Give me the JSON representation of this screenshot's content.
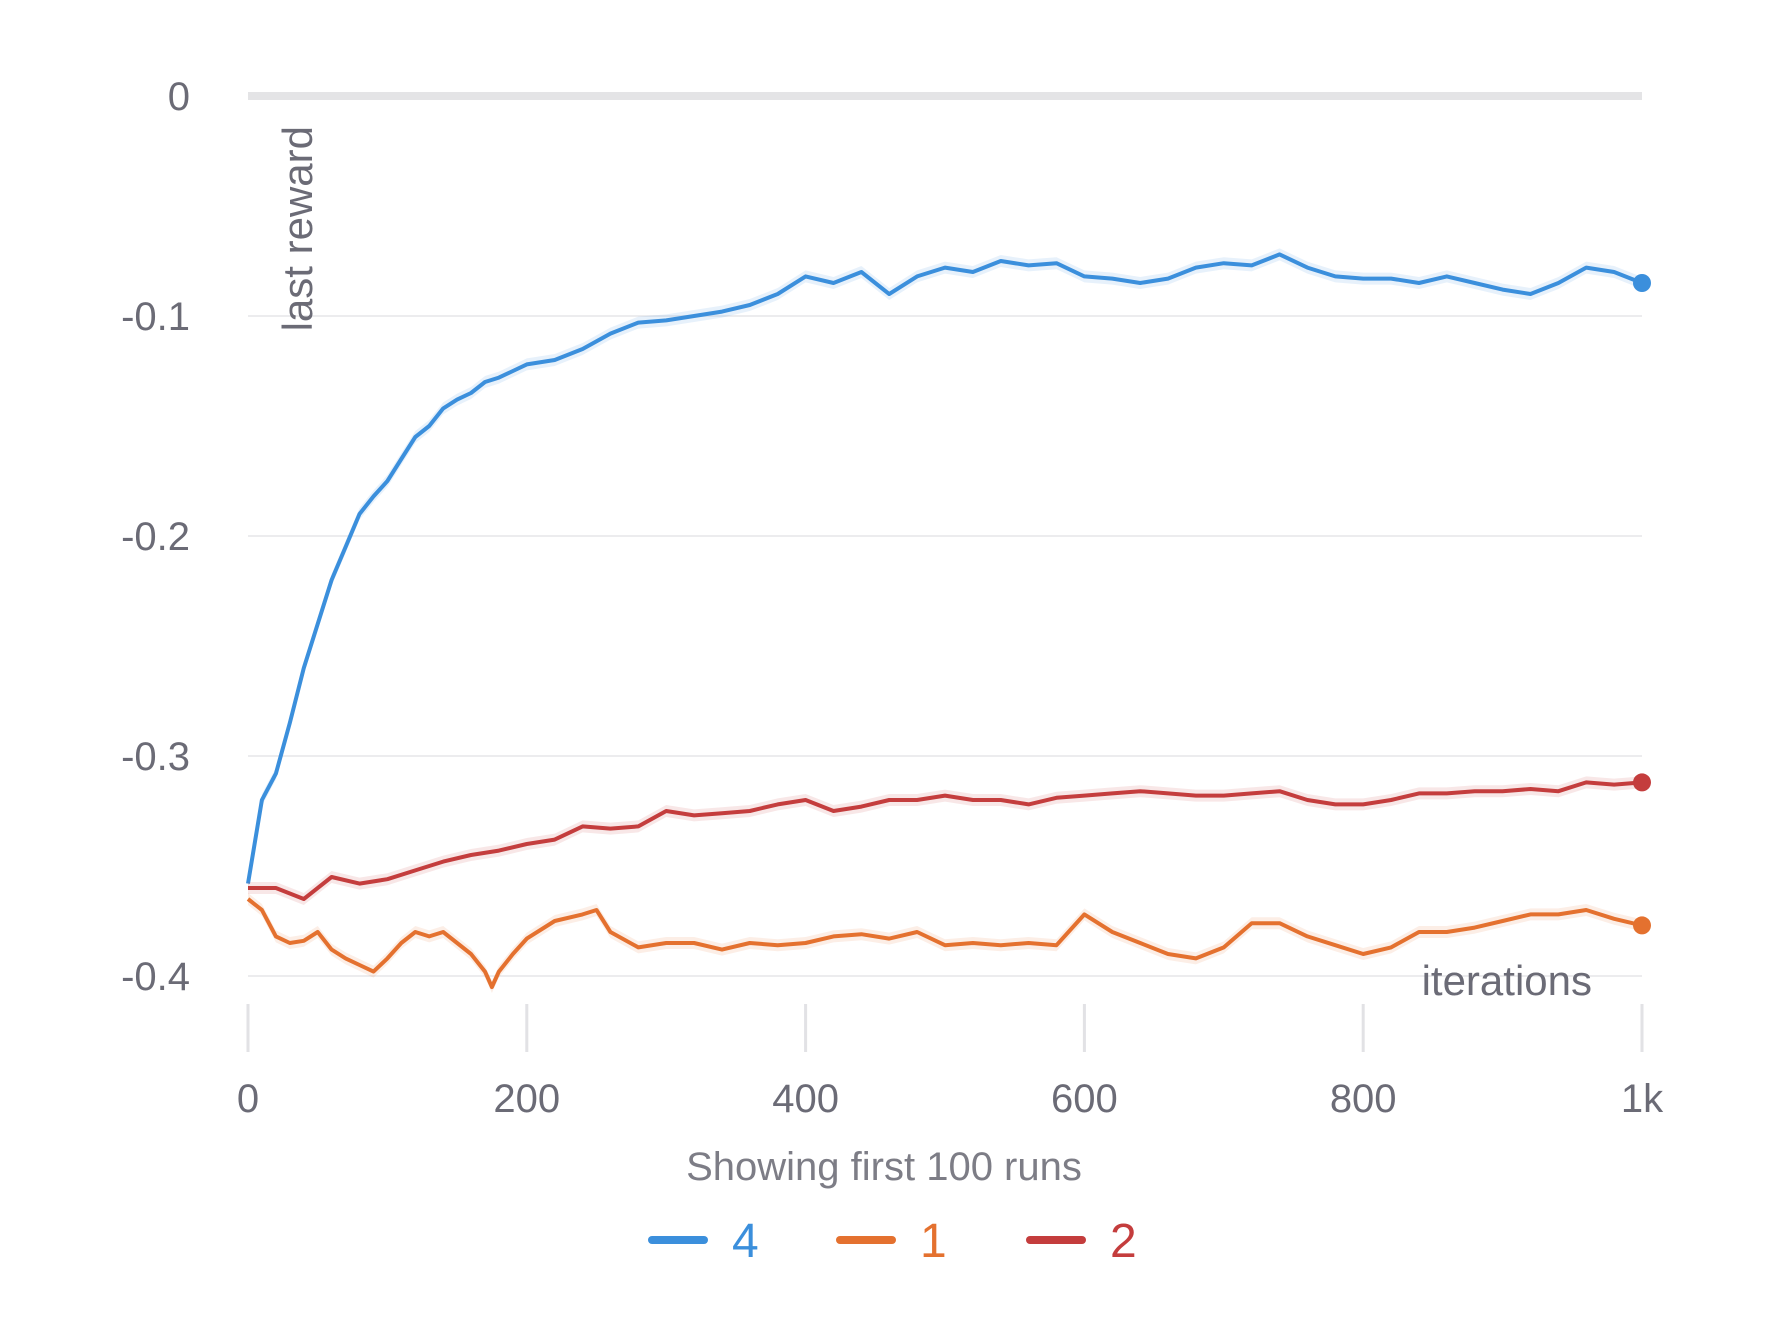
{
  "chart_data": {
    "type": "line",
    "title": "",
    "xlabel": "iterations",
    "ylabel": "last reward",
    "xlim": [
      0,
      1000
    ],
    "ylim": [
      -0.42,
      0.0
    ],
    "grid": true,
    "x_ticks": [
      {
        "value": 0,
        "label": "0"
      },
      {
        "value": 200,
        "label": "200"
      },
      {
        "value": 400,
        "label": "400"
      },
      {
        "value": 600,
        "label": "600"
      },
      {
        "value": 800,
        "label": "800"
      },
      {
        "value": 1000,
        "label": "1k"
      }
    ],
    "y_ticks": [
      {
        "value": 0,
        "label": "0"
      },
      {
        "value": -0.1,
        "label": "-0.1"
      },
      {
        "value": -0.2,
        "label": "-0.2"
      },
      {
        "value": -0.3,
        "label": "-0.3"
      },
      {
        "value": -0.4,
        "label": "-0.4"
      }
    ],
    "caption": "Showing first 100 runs",
    "legend_position": "bottom-center",
    "series": [
      {
        "name": "4",
        "color": "#3b8fdc",
        "x": [
          0,
          10,
          20,
          30,
          40,
          50,
          60,
          70,
          80,
          90,
          100,
          110,
          120,
          130,
          140,
          150,
          160,
          170,
          180,
          190,
          200,
          220,
          240,
          260,
          280,
          300,
          320,
          340,
          360,
          380,
          400,
          420,
          440,
          460,
          480,
          500,
          520,
          540,
          560,
          580,
          600,
          620,
          640,
          660,
          680,
          700,
          720,
          740,
          760,
          780,
          800,
          820,
          840,
          860,
          880,
          900,
          920,
          940,
          960,
          980,
          1000
        ],
        "values": [
          -0.358,
          -0.32,
          -0.308,
          -0.285,
          -0.26,
          -0.24,
          -0.22,
          -0.205,
          -0.19,
          -0.182,
          -0.175,
          -0.165,
          -0.155,
          -0.15,
          -0.142,
          -0.138,
          -0.135,
          -0.13,
          -0.128,
          -0.125,
          -0.122,
          -0.12,
          -0.115,
          -0.108,
          -0.103,
          -0.102,
          -0.1,
          -0.098,
          -0.095,
          -0.09,
          -0.082,
          -0.085,
          -0.08,
          -0.09,
          -0.082,
          -0.078,
          -0.08,
          -0.075,
          -0.077,
          -0.076,
          -0.082,
          -0.083,
          -0.085,
          -0.083,
          -0.078,
          -0.076,
          -0.077,
          -0.072,
          -0.078,
          -0.082,
          -0.083,
          -0.083,
          -0.085,
          -0.082,
          -0.085,
          -0.088,
          -0.09,
          -0.085,
          -0.078,
          -0.08,
          -0.085
        ]
      },
      {
        "name": "1",
        "color": "#e4712f",
        "x": [
          0,
          10,
          20,
          30,
          40,
          50,
          60,
          70,
          80,
          90,
          100,
          110,
          120,
          130,
          140,
          150,
          160,
          170,
          175,
          180,
          190,
          200,
          220,
          240,
          250,
          260,
          280,
          300,
          320,
          340,
          360,
          380,
          400,
          420,
          440,
          460,
          480,
          500,
          520,
          540,
          560,
          580,
          600,
          620,
          640,
          660,
          680,
          700,
          720,
          740,
          760,
          780,
          800,
          820,
          840,
          860,
          880,
          900,
          920,
          940,
          960,
          980,
          1000
        ],
        "values": [
          -0.365,
          -0.37,
          -0.382,
          -0.385,
          -0.384,
          -0.38,
          -0.388,
          -0.392,
          -0.395,
          -0.398,
          -0.392,
          -0.385,
          -0.38,
          -0.382,
          -0.38,
          -0.385,
          -0.39,
          -0.398,
          -0.405,
          -0.398,
          -0.39,
          -0.383,
          -0.375,
          -0.372,
          -0.37,
          -0.38,
          -0.387,
          -0.385,
          -0.385,
          -0.388,
          -0.385,
          -0.386,
          -0.385,
          -0.382,
          -0.381,
          -0.383,
          -0.38,
          -0.386,
          -0.385,
          -0.386,
          -0.385,
          -0.386,
          -0.372,
          -0.38,
          -0.385,
          -0.39,
          -0.392,
          -0.387,
          -0.376,
          -0.376,
          -0.382,
          -0.386,
          -0.39,
          -0.387,
          -0.38,
          -0.38,
          -0.378,
          -0.375,
          -0.372,
          -0.372,
          -0.37,
          -0.374,
          -0.377
        ]
      },
      {
        "name": "2",
        "color": "#c43d3d",
        "x": [
          0,
          20,
          40,
          60,
          80,
          100,
          120,
          140,
          160,
          180,
          200,
          220,
          240,
          260,
          280,
          300,
          320,
          340,
          360,
          380,
          400,
          420,
          440,
          460,
          480,
          500,
          520,
          540,
          560,
          580,
          600,
          620,
          640,
          660,
          680,
          700,
          720,
          740,
          760,
          780,
          800,
          820,
          840,
          860,
          880,
          900,
          920,
          940,
          960,
          980,
          1000
        ],
        "values": [
          -0.36,
          -0.36,
          -0.365,
          -0.355,
          -0.358,
          -0.356,
          -0.352,
          -0.348,
          -0.345,
          -0.343,
          -0.34,
          -0.338,
          -0.332,
          -0.333,
          -0.332,
          -0.325,
          -0.327,
          -0.326,
          -0.325,
          -0.322,
          -0.32,
          -0.325,
          -0.323,
          -0.32,
          -0.32,
          -0.318,
          -0.32,
          -0.32,
          -0.322,
          -0.319,
          -0.318,
          -0.317,
          -0.316,
          -0.317,
          -0.318,
          -0.318,
          -0.317,
          -0.316,
          -0.32,
          -0.322,
          -0.322,
          -0.32,
          -0.317,
          -0.317,
          -0.316,
          -0.316,
          -0.315,
          -0.316,
          -0.312,
          -0.313,
          -0.312
        ]
      }
    ]
  }
}
